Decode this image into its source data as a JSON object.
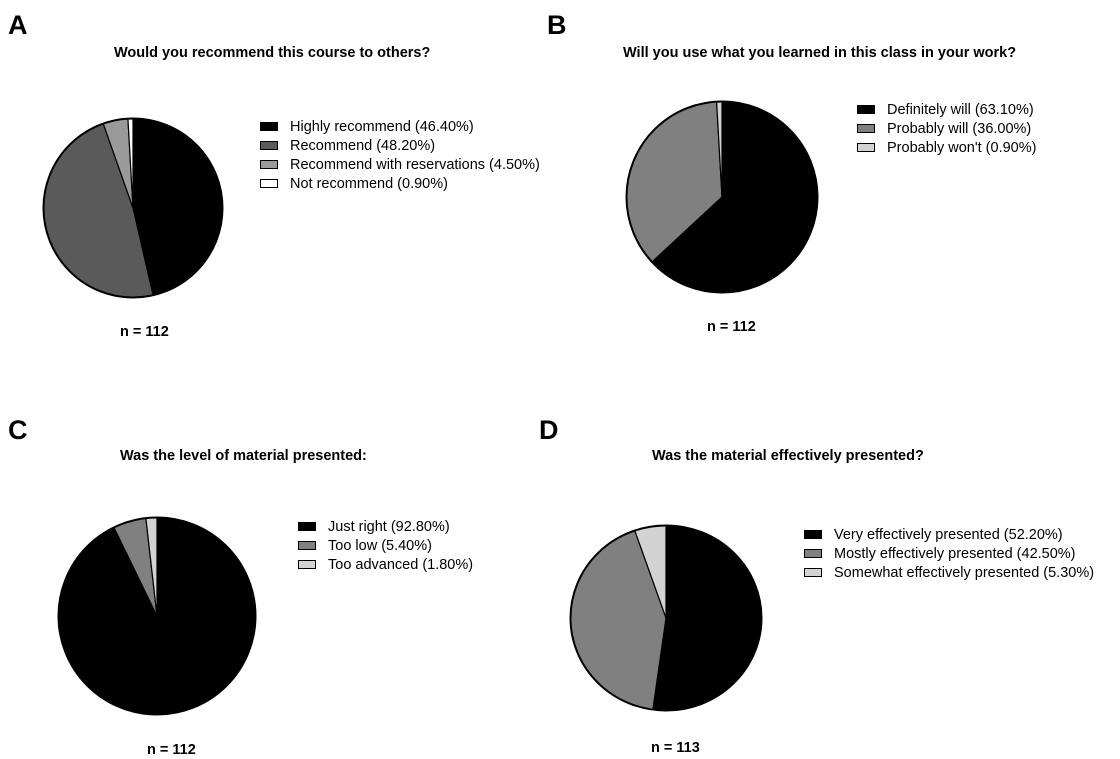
{
  "chart_data": [
    {
      "type": "pie",
      "panel_label": "A",
      "title": "Would you recommend this course to others?",
      "n_text": "n = 112",
      "slices": [
        {
          "label": "Highly recommend (46.40%)",
          "value": 46.4,
          "color": "#000000"
        },
        {
          "label": "Recommend (48.20%)",
          "value": 48.2,
          "color": "#5a5a5a"
        },
        {
          "label": "Recommend with reservations (4.50%)",
          "value": 4.5,
          "color": "#9a9a9a"
        },
        {
          "label": "Not recommend (0.90%)",
          "value": 0.9,
          "color": "#ffffff"
        }
      ]
    },
    {
      "type": "pie",
      "panel_label": "B",
      "title": "Will you use what you learned in this class in your work?",
      "n_text": "n = 112",
      "slices": [
        {
          "label": "Definitely will (63.10%)",
          "value": 63.1,
          "color": "#000000"
        },
        {
          "label": "Probably will (36.00%)",
          "value": 36.0,
          "color": "#808080"
        },
        {
          "label": "Probably won't (0.90%)",
          "value": 0.9,
          "color": "#d3d3d3"
        }
      ]
    },
    {
      "type": "pie",
      "panel_label": "C",
      "title": "Was the level of material presented:",
      "n_text": "n = 112",
      "slices": [
        {
          "label": "Just right (92.80%)",
          "value": 92.8,
          "color": "#000000"
        },
        {
          "label": "Too low (5.40%)",
          "value": 5.4,
          "color": "#808080"
        },
        {
          "label": "Too advanced (1.80%)",
          "value": 1.8,
          "color": "#d3d3d3"
        }
      ]
    },
    {
      "type": "pie",
      "panel_label": "D",
      "title": "Was the material effectively presented?",
      "n_text": "n = 113",
      "slices": [
        {
          "label": "Very effectively presented (52.20%)",
          "value": 52.2,
          "color": "#000000"
        },
        {
          "label": "Mostly effectively presented (42.50%)",
          "value": 42.5,
          "color": "#808080"
        },
        {
          "label": "Somewhat effectively presented (5.30%)",
          "value": 5.3,
          "color": "#d3d3d3"
        }
      ]
    }
  ]
}
